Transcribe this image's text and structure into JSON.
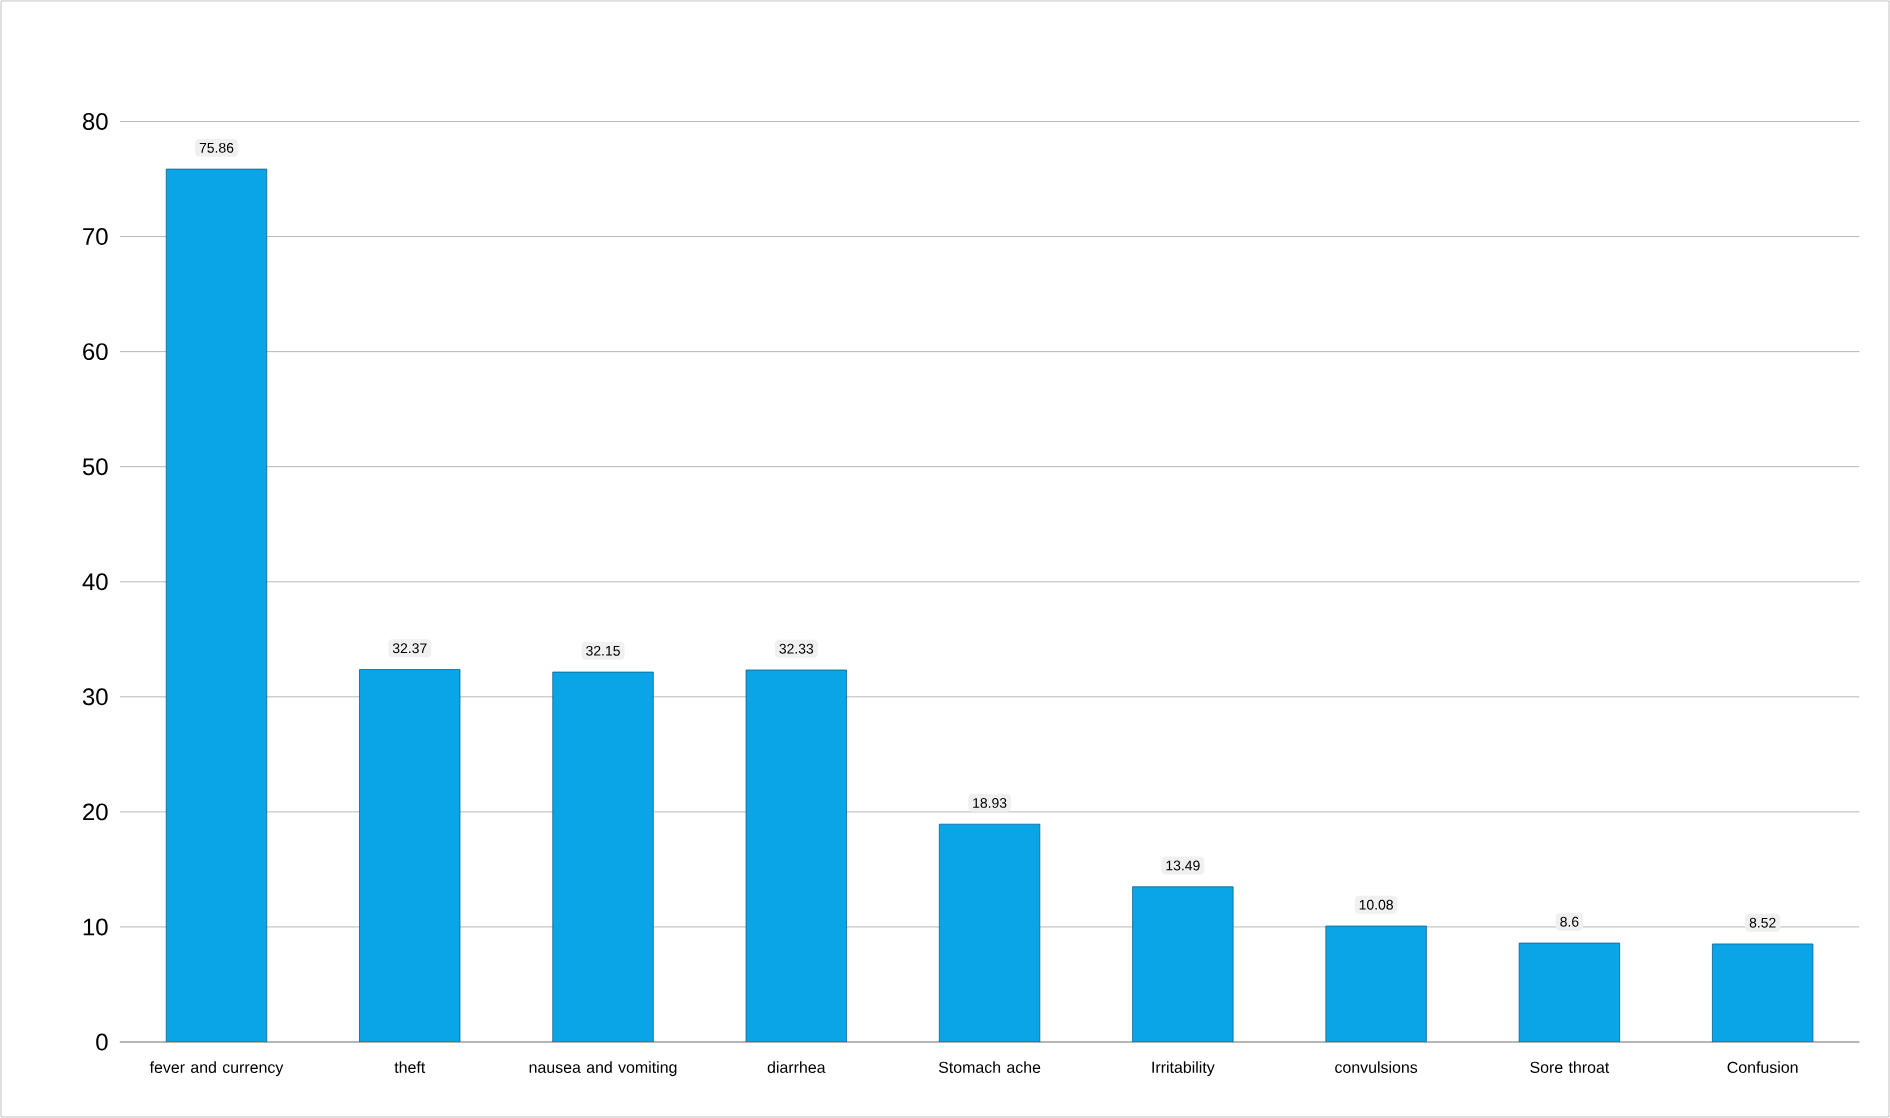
{
  "chart_data": {
    "type": "bar",
    "categories": [
      "fever and currency",
      "theft",
      "nausea and vomiting",
      "diarrhea",
      "Stomach ache",
      "Irritability",
      "convulsions",
      "Sore throat",
      "Confusion"
    ],
    "values": [
      75.86,
      32.37,
      32.15,
      32.33,
      18.93,
      13.49,
      10.08,
      8.6,
      8.52
    ],
    "color": "#0aa5e6",
    "ylim": [
      0,
      80
    ],
    "yticks": [
      0,
      10,
      20,
      30,
      40,
      50,
      60,
      70,
      80
    ],
    "grid": "y",
    "data_labels": true
  }
}
